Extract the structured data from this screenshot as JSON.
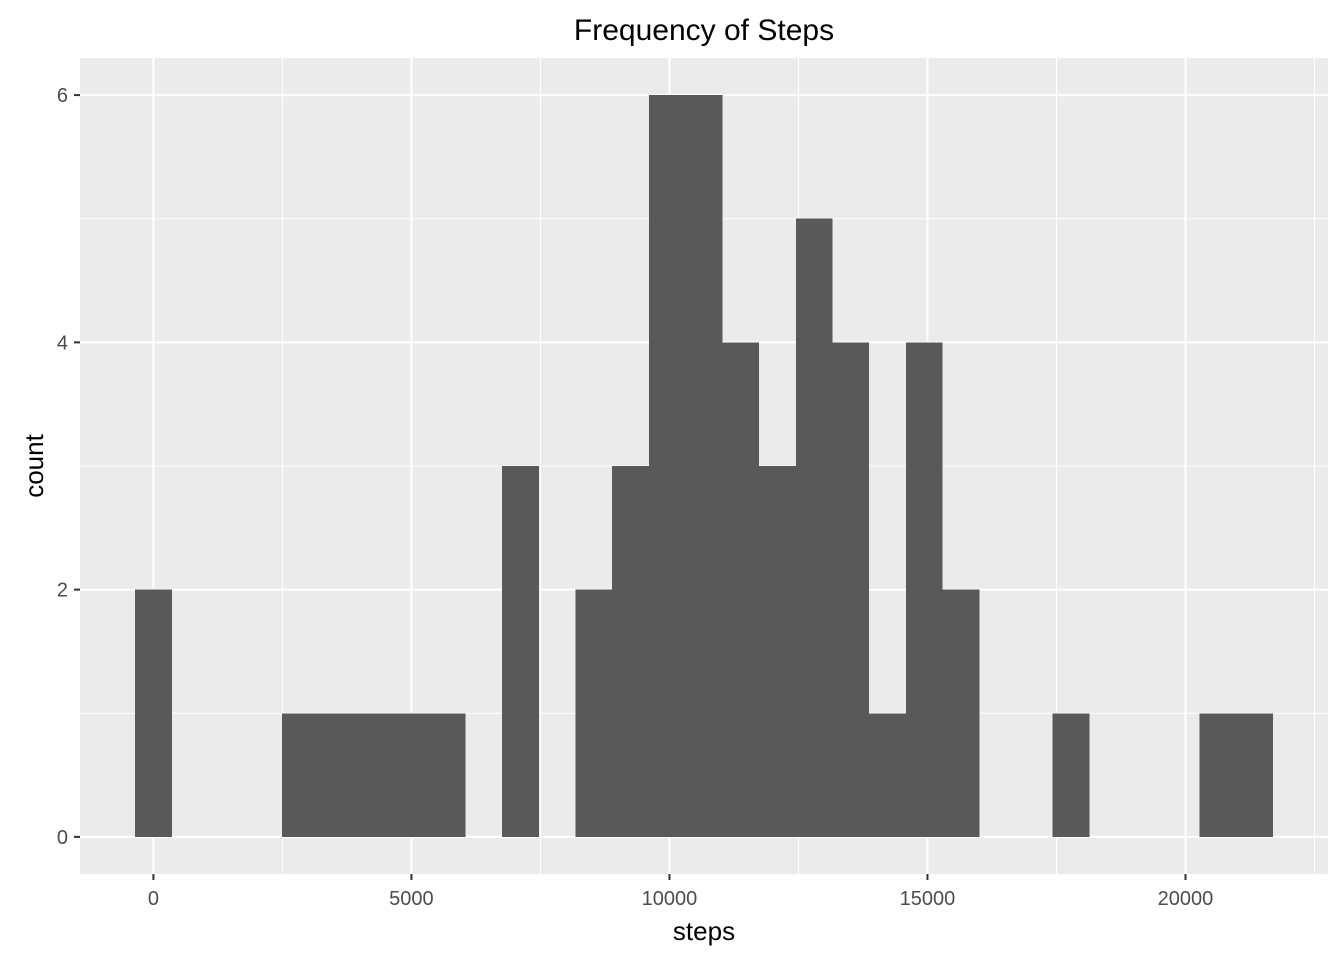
{
  "chart_data": {
    "type": "bar",
    "subtype": "histogram",
    "title": "Frequency of Steps",
    "xlabel": "steps",
    "ylabel": "count",
    "bin_width": 711.3,
    "bins": [
      {
        "x": 0,
        "count": 2
      },
      {
        "x": 711.3,
        "count": 0
      },
      {
        "x": 1422.6,
        "count": 0
      },
      {
        "x": 2133.9,
        "count": 0
      },
      {
        "x": 2845.2,
        "count": 1
      },
      {
        "x": 3556.5,
        "count": 1
      },
      {
        "x": 4267.8,
        "count": 1
      },
      {
        "x": 4979.1,
        "count": 1
      },
      {
        "x": 5690.4,
        "count": 1
      },
      {
        "x": 6401.7,
        "count": 0
      },
      {
        "x": 7113.0,
        "count": 3
      },
      {
        "x": 7824.3,
        "count": 0
      },
      {
        "x": 8535.6,
        "count": 2
      },
      {
        "x": 9246.9,
        "count": 3
      },
      {
        "x": 9958.2,
        "count": 6
      },
      {
        "x": 10669.5,
        "count": 6
      },
      {
        "x": 11380.8,
        "count": 4
      },
      {
        "x": 12092.1,
        "count": 3
      },
      {
        "x": 12803.4,
        "count": 5
      },
      {
        "x": 13514.7,
        "count": 4
      },
      {
        "x": 14226.0,
        "count": 1
      },
      {
        "x": 14937.3,
        "count": 4
      },
      {
        "x": 15648.6,
        "count": 2
      },
      {
        "x": 16359.9,
        "count": 0
      },
      {
        "x": 17071.2,
        "count": 0
      },
      {
        "x": 17782.5,
        "count": 1
      },
      {
        "x": 18493.8,
        "count": 0
      },
      {
        "x": 19205.1,
        "count": 0
      },
      {
        "x": 19916.4,
        "count": 0
      },
      {
        "x": 20627.7,
        "count": 1
      },
      {
        "x": 21339.0,
        "count": 1
      }
    ],
    "xlim": [
      -1422.6,
      22761.6
    ],
    "ylim": [
      -0.3,
      6.3
    ],
    "x_ticks": [
      0,
      5000,
      10000,
      15000,
      20000
    ],
    "x_tick_labels": [
      "0",
      "5000",
      "10000",
      "15000",
      "20000"
    ],
    "y_ticks": [
      0,
      2,
      4,
      6
    ],
    "y_tick_labels": [
      "0",
      "2",
      "4",
      "6"
    ],
    "grid": true,
    "colors": {
      "bar": "#595959",
      "panel": "#ebebeb",
      "grid": "#ffffff",
      "tick_text": "#4d4d4d"
    }
  }
}
